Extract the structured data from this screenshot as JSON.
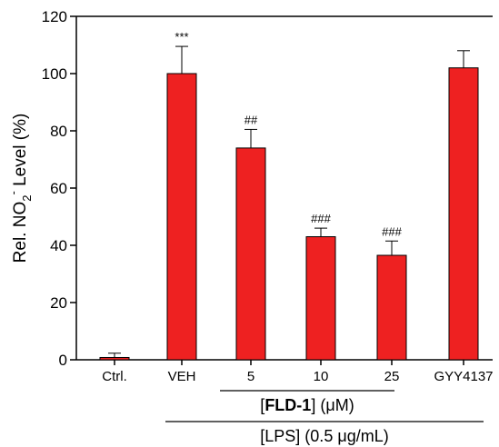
{
  "chart_data": {
    "type": "bar",
    "ylabel_parts": {
      "pre": "Rel. NO",
      "sub": "2",
      "sup": "-",
      "post": " Level (%)"
    },
    "ylim": [
      0,
      120
    ],
    "yticks": [
      0,
      20,
      40,
      60,
      80,
      100,
      120
    ],
    "tick_labels": [
      "0",
      "20",
      "40",
      "60",
      "80",
      "100",
      "120"
    ],
    "categories": [
      "Ctrl.",
      "VEH",
      "5",
      "10",
      "25",
      "GYY4137"
    ],
    "values": [
      0.8,
      100,
      74,
      43,
      36.5,
      102
    ],
    "errors": [
      1.5,
      9.5,
      6.5,
      3,
      5,
      6
    ],
    "significance": [
      "",
      "***",
      "##",
      "###",
      "###",
      ""
    ],
    "bar_color": "#ee2121",
    "grid": false,
    "groups": {
      "fld": {
        "open": "[",
        "name": "FLD-1",
        "close": "]",
        "unit": " (μM)"
      },
      "lps": {
        "text": "[LPS] (0.5 μg/mL)"
      }
    }
  }
}
